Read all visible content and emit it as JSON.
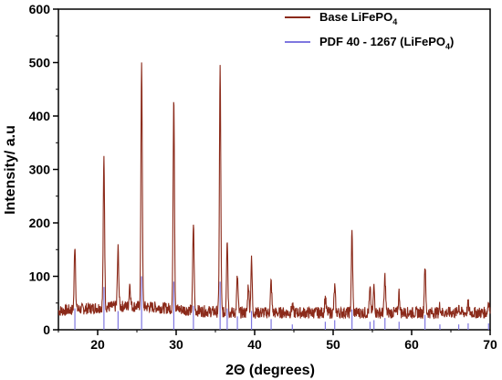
{
  "chart_data": {
    "type": "line",
    "xlabel": "2Θ (degrees)",
    "ylabel": "Intensity/ a.u",
    "xlim": [
      15,
      70
    ],
    "ylim": [
      0,
      600
    ],
    "xticks": [
      20,
      30,
      40,
      50,
      60,
      70
    ],
    "yticks": [
      0,
      100,
      200,
      300,
      400,
      500,
      600
    ],
    "legend_position": "top-right",
    "legend": [
      {
        "label_main": "Base LiFePO",
        "label_sub": "4",
        "label_tail": "",
        "color": "#8b2a1a"
      },
      {
        "label_main": "PDF 40 - 1267 (LiFePO",
        "label_sub": "4",
        "label_tail": ")",
        "color": "#7f77e0"
      }
    ],
    "series": [
      {
        "name": "Base LiFePO4",
        "color": "#8b2a1a",
        "baseline": 32,
        "peaks": [
          [
            17.1,
            155
          ],
          [
            20.8,
            312
          ],
          [
            22.6,
            140
          ],
          [
            24.1,
            75
          ],
          [
            25.6,
            492
          ],
          [
            29.7,
            433
          ],
          [
            32.2,
            195
          ],
          [
            35.6,
            487
          ],
          [
            36.5,
            172
          ],
          [
            37.8,
            100
          ],
          [
            39.2,
            85
          ],
          [
            39.6,
            130
          ],
          [
            42.1,
            90
          ],
          [
            44.8,
            45
          ],
          [
            49.0,
            60
          ],
          [
            50.2,
            80
          ],
          [
            52.4,
            182
          ],
          [
            54.7,
            75
          ],
          [
            55.2,
            80
          ],
          [
            56.6,
            100
          ],
          [
            58.4,
            70
          ],
          [
            61.7,
            122
          ],
          [
            63.6,
            45
          ],
          [
            66.0,
            45
          ],
          [
            67.2,
            48
          ],
          [
            69.8,
            55
          ]
        ]
      },
      {
        "name": "PDF 40 - 1267 (LiFePO4)",
        "color": "#7f77e0",
        "sticks": [
          [
            17.1,
            40
          ],
          [
            20.8,
            80
          ],
          [
            22.6,
            35
          ],
          [
            25.6,
            100
          ],
          [
            29.7,
            90
          ],
          [
            32.2,
            45
          ],
          [
            35.6,
            90
          ],
          [
            36.5,
            40
          ],
          [
            37.8,
            25
          ],
          [
            39.6,
            35
          ],
          [
            42.1,
            20
          ],
          [
            44.8,
            10
          ],
          [
            49.0,
            15
          ],
          [
            50.2,
            18
          ],
          [
            52.4,
            38
          ],
          [
            54.7,
            15
          ],
          [
            55.2,
            18
          ],
          [
            56.6,
            22
          ],
          [
            58.4,
            15
          ],
          [
            61.7,
            28
          ],
          [
            63.6,
            10
          ],
          [
            66.0,
            10
          ],
          [
            67.2,
            12
          ],
          [
            69.8,
            12
          ]
        ]
      }
    ]
  }
}
